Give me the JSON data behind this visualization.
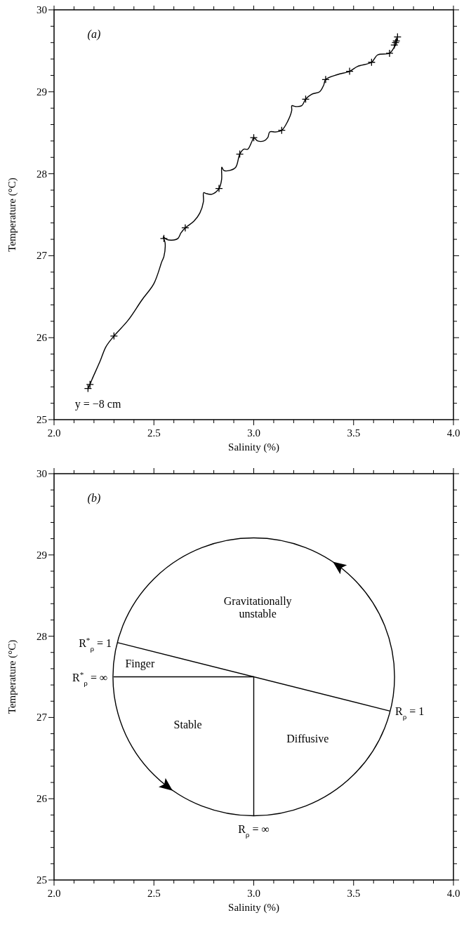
{
  "chart_data": [
    {
      "type": "line",
      "xlabel": "Salinity (%)",
      "ylabel": "Temperature (°C)",
      "xlim": [
        2,
        4
      ],
      "ylim": [
        25,
        30
      ],
      "xticks": [
        {
          "value": 2.0,
          "label": "2.0"
        },
        {
          "value": 2.1,
          "label": null
        },
        {
          "value": 2.2,
          "label": null
        },
        {
          "value": 2.3,
          "label": null
        },
        {
          "value": 2.4,
          "label": null
        },
        {
          "value": 2.5,
          "label": "2.5"
        },
        {
          "value": 2.6,
          "label": null
        },
        {
          "value": 2.7,
          "label": null
        },
        {
          "value": 2.8,
          "label": null
        },
        {
          "value": 2.9,
          "label": null
        },
        {
          "value": 3.0,
          "label": "3.0"
        },
        {
          "value": 3.1,
          "label": null
        },
        {
          "value": 3.2,
          "label": null
        },
        {
          "value": 3.3,
          "label": null
        },
        {
          "value": 3.4,
          "label": null
        },
        {
          "value": 3.5,
          "label": "3.5"
        },
        {
          "value": 3.6,
          "label": null
        },
        {
          "value": 3.7,
          "label": null
        },
        {
          "value": 3.8,
          "label": null
        },
        {
          "value": 3.9,
          "label": null
        },
        {
          "value": 4.0,
          "label": "4.0"
        }
      ],
      "yticks": [
        25,
        {
          "value": 25.2,
          "label": null
        },
        {
          "value": 25.4,
          "label": null
        },
        {
          "value": 25.6,
          "label": null
        },
        {
          "value": 25.8,
          "label": null
        },
        26,
        {
          "value": 26.2,
          "label": null
        },
        {
          "value": 26.4,
          "label": null
        },
        {
          "value": 26.6,
          "label": null
        },
        {
          "value": 26.8,
          "label": null
        },
        27,
        {
          "value": 27.2,
          "label": null
        },
        {
          "value": 27.4,
          "label": null
        },
        {
          "value": 27.6,
          "label": null
        },
        {
          "value": 27.8,
          "label": null
        },
        28,
        {
          "value": 28.2,
          "label": null
        },
        {
          "value": 28.4,
          "label": null
        },
        {
          "value": 28.6,
          "label": null
        },
        {
          "value": 28.8,
          "label": null
        },
        29,
        {
          "value": 29.2,
          "label": null
        },
        {
          "value": 29.4,
          "label": null
        },
        {
          "value": 29.6,
          "label": null
        },
        {
          "value": 29.8,
          "label": null
        },
        30
      ],
      "annotations": [
        "(a)",
        "y = −8 cm"
      ],
      "series": [
        {
          "color": "#000000",
          "marker": "none",
          "x": [
            2.17,
            2.18,
            2.19,
            2.23,
            2.26,
            2.3,
            2.37,
            2.44,
            2.5,
            2.54,
            2.55,
            2.556,
            2.547,
            2.563,
            2.59,
            2.62,
            2.636,
            2.657,
            2.7,
            2.73,
            2.748,
            2.749,
            2.76,
            2.79,
            2.826,
            2.839,
            2.84,
            2.85,
            2.88,
            2.91,
            2.93,
            2.95,
            2.97,
            2.99,
            3.0,
            3.02,
            3.05,
            3.07,
            3.08,
            3.11,
            3.14,
            3.17,
            3.19,
            3.191,
            3.21,
            3.24,
            3.26,
            3.29,
            3.33,
            3.35,
            3.36,
            3.42,
            3.48,
            3.52,
            3.59,
            3.62,
            3.68,
            3.7,
            3.71,
            3.72
          ],
          "values": [
            25.38,
            25.43,
            25.49,
            25.71,
            25.89,
            26.02,
            26.21,
            26.46,
            26.66,
            26.93,
            26.99,
            27.16,
            27.23,
            27.2,
            27.19,
            27.21,
            27.28,
            27.34,
            27.42,
            27.52,
            27.66,
            27.77,
            27.76,
            27.75,
            27.82,
            27.93,
            28.08,
            28.04,
            28.04,
            28.08,
            28.24,
            28.3,
            28.3,
            28.39,
            28.44,
            28.4,
            28.4,
            28.44,
            28.51,
            28.51,
            28.53,
            28.64,
            28.77,
            28.83,
            28.82,
            28.83,
            28.91,
            28.97,
            29.0,
            29.08,
            29.15,
            29.21,
            29.25,
            29.31,
            29.36,
            29.45,
            29.47,
            29.53,
            29.58,
            29.65
          ]
        },
        {
          "type": "scatter",
          "color": "#000000",
          "marker": "cross",
          "x": [
            2.17,
            2.18,
            2.3,
            2.55,
            2.657,
            2.826,
            2.93,
            3.0,
            3.14,
            3.26,
            3.36,
            3.48,
            3.59,
            3.68,
            3.704,
            3.71,
            3.714,
            3.72
          ],
          "values": [
            25.38,
            25.43,
            26.02,
            27.21,
            27.34,
            27.82,
            28.24,
            28.44,
            28.53,
            28.91,
            29.15,
            29.25,
            29.36,
            29.47,
            29.57,
            29.6,
            29.62,
            29.67
          ]
        }
      ]
    },
    {
      "type": "line",
      "xlabel": "Salinity (%)",
      "ylabel": "Temperature (°C)",
      "xlim": [
        2,
        4
      ],
      "ylim": [
        25,
        30
      ],
      "xticks": [
        {
          "value": 2.0,
          "label": "2.0"
        },
        {
          "value": 2.1,
          "label": null
        },
        {
          "value": 2.2,
          "label": null
        },
        {
          "value": 2.3,
          "label": null
        },
        {
          "value": 2.4,
          "label": null
        },
        {
          "value": 2.5,
          "label": "2.5"
        },
        {
          "value": 2.6,
          "label": null
        },
        {
          "value": 2.7,
          "label": null
        },
        {
          "value": 2.8,
          "label": null
        },
        {
          "value": 2.9,
          "label": null
        },
        {
          "value": 3.0,
          "label": "3.0"
        },
        {
          "value": 3.1,
          "label": null
        },
        {
          "value": 3.2,
          "label": null
        },
        {
          "value": 3.3,
          "label": null
        },
        {
          "value": 3.4,
          "label": null
        },
        {
          "value": 3.5,
          "label": "3.5"
        },
        {
          "value": 3.6,
          "label": null
        },
        {
          "value": 3.7,
          "label": null
        },
        {
          "value": 3.8,
          "label": null
        },
        {
          "value": 3.9,
          "label": null
        },
        {
          "value": 4.0,
          "label": "4.0"
        }
      ],
      "yticks": [
        25,
        {
          "value": 25.2,
          "label": null
        },
        {
          "value": 25.4,
          "label": null
        },
        {
          "value": 25.6,
          "label": null
        },
        {
          "value": 25.8,
          "label": null
        },
        26,
        {
          "value": 26.2,
          "label": null
        },
        {
          "value": 26.4,
          "label": null
        },
        {
          "value": 26.6,
          "label": null
        },
        {
          "value": 26.8,
          "label": null
        },
        27,
        {
          "value": 27.2,
          "label": null
        },
        {
          "value": 27.4,
          "label": null
        },
        {
          "value": 27.6,
          "label": null
        },
        {
          "value": 27.8,
          "label": null
        },
        28,
        {
          "value": 28.2,
          "label": null
        },
        {
          "value": 28.4,
          "label": null
        },
        {
          "value": 28.6,
          "label": null
        },
        {
          "value": 28.8,
          "label": null
        },
        29,
        {
          "value": 29.2,
          "label": null
        },
        {
          "value": 29.4,
          "label": null
        },
        {
          "value": 29.6,
          "label": null
        },
        {
          "value": 29.8,
          "label": null
        },
        30
      ],
      "annotations": [
        "(b)",
        "Gravitationally\nunstable",
        "Finger",
        "Stable",
        "Diffusive",
        {
          "text": "R$^{*}$$_{ρ}$ = 1",
          "x": 2.32,
          "y": 27.92
        },
        {
          "text": "R$^{*}$$_{ρ}$ = ∞",
          "x": 2.3,
          "y": 27.5
        },
        {
          "text": "R$_{ρ}$ = 1",
          "x": 3.68,
          "y": 27.08
        },
        {
          "text": "R$_{ρ}$ = ∞",
          "x": 3.0,
          "y": 25.79
        }
      ],
      "series": [
        {
          "color": "#000000",
          "x": [
            2.32,
            3.68
          ],
          "values": [
            27.92,
            27.08
          ]
        },
        {
          "color": "#000000",
          "x": [
            2.3,
            3.0
          ],
          "values": [
            27.5,
            27.5
          ]
        },
        {
          "color": "#000000",
          "x": [
            3.0,
            3.0
          ],
          "values": [
            27.5,
            25.79
          ]
        }
      ]
    }
  ]
}
